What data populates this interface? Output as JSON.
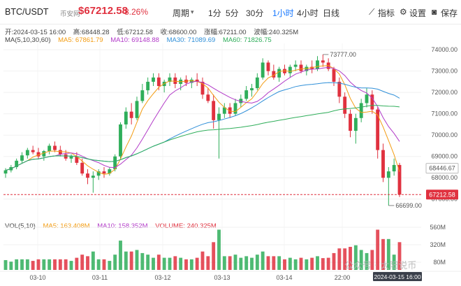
{
  "header": {
    "pair": "BTC/USDT",
    "source": "币安网",
    "price": "$67212.58",
    "change": "-8.26%",
    "period_label": "周期",
    "periods": [
      "1分",
      "5分",
      "30分",
      "1小时",
      "4小时",
      "日线"
    ],
    "active_period": "1小时",
    "tools": {
      "indicators": "指标",
      "settings": "设置",
      "save": "保存"
    }
  },
  "ohlc": {
    "open": "开:2024-03-15 16:00",
    "high": "高:68448.28",
    "low": "低:67212.58",
    "close": "收:68600.00",
    "amplitude": "涨幅:67211.00",
    "wave": "波幅:240.325M"
  },
  "ma_legend": {
    "title": "MA(5,10,30,60)",
    "items": [
      {
        "label": "MA5: 67861.79",
        "color": "#f39c12"
      },
      {
        "label": "MA10: 69148.88",
        "color": "#b23ac8"
      },
      {
        "label": "MA30: 71089.69",
        "color": "#2f8fd8"
      },
      {
        "label": "MA60: 71826.75",
        "color": "#2fae5a"
      }
    ]
  },
  "vol_legend": {
    "title": "VOL(5,10)",
    "items": [
      {
        "label": "MA5: 163.408M",
        "color": "#f39c12"
      },
      {
        "label": "MA10: 158.352M",
        "color": "#b23ac8"
      },
      {
        "label": "VOLUME: 240.325M",
        "color": "#e0313f"
      }
    ]
  },
  "price_axis": [
    "74000.00",
    "73000.00",
    "72000.00",
    "71000.00",
    "70000.00",
    "69000.00",
    "68000.00",
    "67000.00"
  ],
  "volume_axis": [
    "560M",
    "320M",
    "80M"
  ],
  "x_axis": [
    "03-10",
    "03-11",
    "03-12",
    "03-13",
    "03-14",
    "22:00"
  ],
  "markers": {
    "high": "73777.00",
    "low": "66699.00"
  },
  "price_tags": {
    "current": "68446.67",
    "last": "67212.58"
  },
  "crosshair_time": "2024-03-15 16:00",
  "watermark": "公众号 · 太阳说币",
  "colors": {
    "up": "#2fae5a",
    "down": "#e0313f"
  },
  "chart_data": {
    "type": "candlestick",
    "interval": "1h",
    "ylim": [
      66500,
      74300
    ],
    "ohlc_approx": [
      [
        68200,
        68450,
        68000,
        68350
      ],
      [
        68350,
        68600,
        68250,
        68500
      ],
      [
        68500,
        68900,
        68400,
        68800
      ],
      [
        68800,
        69200,
        68700,
        69050
      ],
      [
        69050,
        69400,
        68900,
        69300
      ],
      [
        69300,
        69500,
        69100,
        69200
      ],
      [
        69200,
        69400,
        68900,
        69000
      ],
      [
        69000,
        69300,
        68800,
        69250
      ],
      [
        69250,
        69600,
        69100,
        69500
      ],
      [
        69500,
        69700,
        69200,
        69300
      ],
      [
        69300,
        69500,
        69000,
        69100
      ],
      [
        69100,
        69300,
        68800,
        68900
      ],
      [
        68900,
        69100,
        68700,
        69000
      ],
      [
        69000,
        69200,
        68600,
        68700
      ],
      [
        68700,
        68900,
        68100,
        68200
      ],
      [
        68200,
        68400,
        67700,
        68000
      ],
      [
        68000,
        68300,
        67300,
        68100
      ],
      [
        68100,
        68400,
        67900,
        68300
      ],
      [
        68300,
        68500,
        68000,
        68200
      ],
      [
        68200,
        68500,
        68100,
        68400
      ],
      [
        68400,
        69100,
        68300,
        69000
      ],
      [
        69000,
        70600,
        68900,
        70500
      ],
      [
        70500,
        71300,
        70300,
        71100
      ],
      [
        71100,
        71500,
        70500,
        70800
      ],
      [
        70800,
        71800,
        70700,
        71600
      ],
      [
        71600,
        72400,
        71500,
        72100
      ],
      [
        72100,
        72700,
        71900,
        72500
      ],
      [
        72500,
        72900,
        72300,
        72700
      ],
      [
        72700,
        72900,
        72100,
        72300
      ],
      [
        72300,
        72600,
        72000,
        72500
      ],
      [
        72500,
        72900,
        72300,
        72700
      ],
      [
        72700,
        72900,
        72200,
        72400
      ],
      [
        72400,
        72700,
        72100,
        72600
      ],
      [
        72600,
        72800,
        72300,
        72450
      ],
      [
        72450,
        72700,
        72200,
        72600
      ],
      [
        72600,
        72900,
        72300,
        72500
      ],
      [
        72500,
        72700,
        71700,
        71900
      ],
      [
        71900,
        72200,
        71500,
        71600
      ],
      [
        71600,
        71900,
        70300,
        70700
      ],
      [
        70700,
        71300,
        68900,
        71000
      ],
      [
        71000,
        71500,
        70800,
        71300
      ],
      [
        71300,
        71500,
        70800,
        71000
      ],
      [
        71000,
        71700,
        70900,
        71500
      ],
      [
        71500,
        71900,
        71300,
        71700
      ],
      [
        71700,
        72300,
        71600,
        72100
      ],
      [
        72100,
        72400,
        71800,
        72200
      ],
      [
        72200,
        72900,
        72100,
        72700
      ],
      [
        72700,
        73600,
        72600,
        73400
      ],
      [
        73400,
        73500,
        72800,
        73000
      ],
      [
        73000,
        73300,
        72600,
        72700
      ],
      [
        72700,
        73200,
        72500,
        73100
      ],
      [
        73100,
        73300,
        72800,
        72900
      ],
      [
        72900,
        73300,
        72700,
        73200
      ],
      [
        73200,
        73500,
        73000,
        73300
      ],
      [
        73300,
        73500,
        72900,
        73000
      ],
      [
        73000,
        73300,
        72800,
        73200
      ],
      [
        73200,
        73500,
        72900,
        73100
      ],
      [
        73100,
        73700,
        73000,
        73500
      ],
      [
        73500,
        73777,
        73200,
        73400
      ],
      [
        73400,
        73600,
        73000,
        73100
      ],
      [
        73100,
        73200,
        72300,
        72500
      ],
      [
        72500,
        72700,
        71500,
        71800
      ],
      [
        71800,
        72000,
        70800,
        71000
      ],
      [
        71000,
        71200,
        69900,
        70200
      ],
      [
        70200,
        71000,
        69600,
        70800
      ],
      [
        70800,
        71700,
        70600,
        71500
      ],
      [
        71500,
        72200,
        71300,
        71900
      ],
      [
        71900,
        72100,
        71000,
        71200
      ],
      [
        71200,
        71300,
        68900,
        69300
      ],
      [
        69300,
        69600,
        67800,
        68000
      ],
      [
        68000,
        68500,
        66699,
        68300
      ],
      [
        68300,
        68900,
        68100,
        68600
      ],
      [
        68600,
        68700,
        67100,
        67212
      ]
    ]
  }
}
